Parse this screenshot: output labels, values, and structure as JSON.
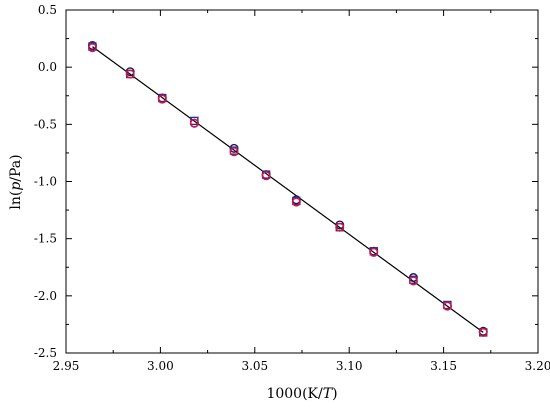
{
  "chart_data": {
    "type": "scatter",
    "title": "",
    "xlabel": "1000(K/T)",
    "ylabel": "ln(p/Pa)",
    "xlim": [
      2.95,
      3.2
    ],
    "ylim": [
      -2.5,
      0.5
    ],
    "xticks": [
      "2.95",
      "3.00",
      "3.05",
      "3.10",
      "3.15",
      "3.20"
    ],
    "yticks": [
      "0.5",
      "0.0",
      "-0.5",
      "-1.0",
      "-1.5",
      "-2.0",
      "-2.5"
    ],
    "grid": false,
    "legend": "none",
    "fit_line": {
      "x": [
        2.964,
        3.171
      ],
      "y": [
        0.18,
        -2.32
      ],
      "color": "#000000"
    },
    "series": [
      {
        "marker": "circle",
        "color": "#1a1a4a",
        "x": [
          2.964,
          2.984,
          3.001,
          3.018,
          3.039,
          3.056,
          3.072,
          3.095,
          3.113,
          3.134,
          3.152,
          3.171
        ],
        "y": [
          0.19,
          -0.04,
          -0.27,
          -0.49,
          -0.71,
          -0.94,
          -1.16,
          -1.38,
          -1.61,
          -1.84,
          -2.09,
          -2.31
        ]
      },
      {
        "marker": "square",
        "color": "#2a2aa0",
        "x": [
          2.964,
          2.984,
          3.001,
          3.018,
          3.039,
          3.056,
          3.072,
          3.095,
          3.113,
          3.134,
          3.152,
          3.171
        ],
        "y": [
          0.18,
          -0.06,
          -0.27,
          -0.47,
          -0.73,
          -0.94,
          -1.17,
          -1.4,
          -1.61,
          -1.86,
          -2.08,
          -2.32
        ]
      },
      {
        "marker": "circle",
        "color": "#e0103a",
        "x": [
          2.964,
          2.984,
          3.001,
          3.018,
          3.039,
          3.056,
          3.072,
          3.095,
          3.113,
          3.134,
          3.152,
          3.171
        ],
        "y": [
          0.17,
          -0.06,
          -0.28,
          -0.49,
          -0.74,
          -0.95,
          -1.18,
          -1.4,
          -1.62,
          -1.87,
          -2.09,
          -2.32
        ]
      }
    ]
  }
}
